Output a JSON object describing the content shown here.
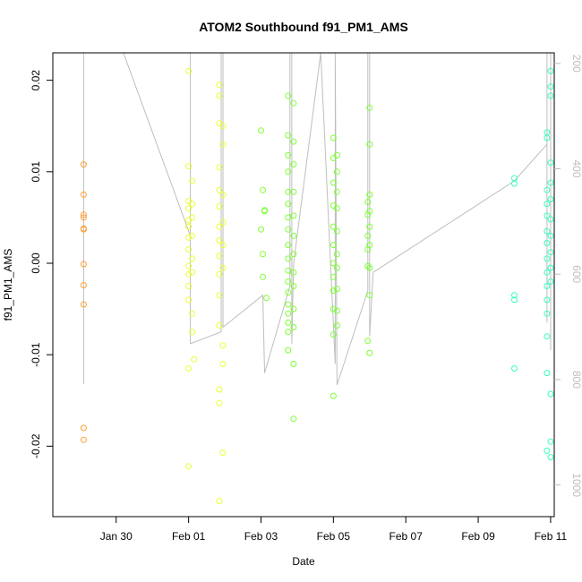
{
  "chart_data": {
    "type": "scatter",
    "title": "ATOM2 Southbound f91_PM1_AMS",
    "xlabel": "Date",
    "ylabel": "f91_PM1_AMS",
    "xlim": [
      -1.75,
      12.1
    ],
    "ylim": [
      -0.0277,
      0.023
    ],
    "x_ticks": [
      {
        "pos": 0,
        "label": "Jan 30"
      },
      {
        "pos": 2,
        "label": "Feb 01"
      },
      {
        "pos": 4,
        "label": "Feb 03"
      },
      {
        "pos": 6,
        "label": "Feb 05"
      },
      {
        "pos": 8,
        "label": "Feb 07"
      },
      {
        "pos": 10,
        "label": "Feb 09"
      },
      {
        "pos": 12,
        "label": "Feb 11"
      }
    ],
    "y_ticks": [
      {
        "value": -0.02,
        "label": "-0.02"
      },
      {
        "value": -0.01,
        "label": "-0.01"
      },
      {
        "value": 0.0,
        "label": "0.00"
      },
      {
        "value": 0.01,
        "label": "0.01"
      },
      {
        "value": 0.02,
        "label": "0.02"
      }
    ],
    "right_axis": {
      "range": [
        180,
        1060
      ],
      "ticks": [
        {
          "value": 200,
          "label": "200"
        },
        {
          "value": 400,
          "label": "400"
        },
        {
          "value": 600,
          "label": "600"
        },
        {
          "value": 800,
          "label": "800"
        },
        {
          "value": 1000,
          "label": "1000"
        }
      ],
      "color": "#bebebe"
    },
    "grid": false,
    "marker": "open-circle",
    "series": [
      {
        "color": "#ff9f33",
        "points": [
          [
            -0.9,
            0.0108
          ],
          [
            -0.9,
            0.0075
          ],
          [
            -0.9,
            0.0053
          ],
          [
            -0.9,
            0.005
          ],
          [
            -0.9,
            0.0038
          ],
          [
            -0.9,
            0.0037
          ],
          [
            -0.9,
            -0.0001
          ],
          [
            -0.9,
            -0.0024
          ],
          [
            -0.9,
            -0.0045
          ],
          [
            -0.9,
            -0.018
          ],
          [
            -0.9,
            -0.0193
          ]
        ]
      },
      {
        "color": "#eaff33",
        "points": [
          [
            2.0,
            0.021
          ],
          [
            2.0,
            0.0106
          ],
          [
            2.0,
            0.0068
          ],
          [
            2.0,
            0.006
          ],
          [
            2.0,
            0.0047
          ],
          [
            2.0,
            0.004
          ],
          [
            2.0,
            0.0028
          ],
          [
            2.0,
            0.0015
          ],
          [
            2.0,
            -0.0003
          ],
          [
            2.0,
            -0.0012
          ],
          [
            2.0,
            -0.0025
          ],
          [
            2.0,
            -0.004
          ],
          [
            2.0,
            -0.0115
          ],
          [
            2.0,
            -0.0222
          ],
          [
            2.1,
            0.009
          ],
          [
            2.1,
            0.0065
          ],
          [
            2.1,
            0.005
          ],
          [
            2.1,
            0.003
          ],
          [
            2.1,
            0.0005
          ],
          [
            2.1,
            -0.001
          ],
          [
            2.1,
            -0.0055
          ],
          [
            2.1,
            -0.0075
          ],
          [
            2.15,
            -0.0105
          ],
          [
            2.85,
            0.0195
          ],
          [
            2.85,
            0.0183
          ],
          [
            2.85,
            0.0153
          ],
          [
            2.85,
            0.0105
          ],
          [
            2.85,
            0.008
          ],
          [
            2.85,
            0.0062
          ],
          [
            2.85,
            0.004
          ],
          [
            2.85,
            0.0025
          ],
          [
            2.85,
            0.0008
          ],
          [
            2.85,
            -0.0012
          ],
          [
            2.85,
            -0.0035
          ],
          [
            2.85,
            -0.0068
          ],
          [
            2.85,
            -0.0138
          ],
          [
            2.85,
            -0.0153
          ],
          [
            2.85,
            -0.026
          ],
          [
            2.95,
            0.015
          ],
          [
            2.95,
            0.013
          ],
          [
            2.95,
            0.0075
          ],
          [
            2.95,
            0.0045
          ],
          [
            2.95,
            0.002
          ],
          [
            2.95,
            -0.0005
          ],
          [
            2.95,
            -0.009
          ],
          [
            2.95,
            -0.011
          ],
          [
            2.95,
            -0.0207
          ]
        ]
      },
      {
        "color": "#7dff33",
        "points": [
          [
            4.0,
            0.0145
          ],
          [
            4.0,
            0.0037
          ],
          [
            4.05,
            0.008
          ],
          [
            4.05,
            0.001
          ],
          [
            4.05,
            -0.0015
          ],
          [
            4.1,
            0.0058
          ],
          [
            4.1,
            0.0057
          ],
          [
            4.15,
            -0.0038
          ],
          [
            4.75,
            0.0183
          ],
          [
            4.75,
            0.014
          ],
          [
            4.75,
            0.0118
          ],
          [
            4.75,
            0.01
          ],
          [
            4.75,
            0.0078
          ],
          [
            4.75,
            0.0065
          ],
          [
            4.75,
            0.005
          ],
          [
            4.75,
            0.0037
          ],
          [
            4.75,
            0.002
          ],
          [
            4.75,
            0.0005
          ],
          [
            4.75,
            -0.0008
          ],
          [
            4.75,
            -0.002
          ],
          [
            4.75,
            -0.0032
          ],
          [
            4.75,
            -0.0045
          ],
          [
            4.75,
            -0.0055
          ],
          [
            4.75,
            -0.0065
          ],
          [
            4.75,
            -0.0075
          ],
          [
            4.75,
            -0.0095
          ],
          [
            4.9,
            0.0175
          ],
          [
            4.9,
            0.0133
          ],
          [
            4.9,
            0.0108
          ],
          [
            4.9,
            0.0078
          ],
          [
            4.9,
            0.0052
          ],
          [
            4.9,
            0.003
          ],
          [
            4.9,
            0.001
          ],
          [
            4.9,
            -0.001
          ],
          [
            4.9,
            -0.0025
          ],
          [
            4.9,
            -0.005
          ],
          [
            4.9,
            -0.007
          ],
          [
            4.9,
            -0.011
          ],
          [
            4.9,
            -0.017
          ],
          [
            6.0,
            0.0137
          ],
          [
            6.0,
            0.0115
          ],
          [
            6.0,
            0.0088
          ],
          [
            6.0,
            0.0063
          ],
          [
            6.0,
            0.004
          ],
          [
            6.0,
            0.002
          ],
          [
            6.0,
            0.0
          ],
          [
            6.0,
            -0.0015
          ],
          [
            6.0,
            -0.003
          ],
          [
            6.0,
            -0.005
          ],
          [
            6.0,
            -0.0078
          ],
          [
            6.0,
            -0.0145
          ],
          [
            6.1,
            0.0118
          ],
          [
            6.1,
            0.01
          ],
          [
            6.1,
            0.0078
          ],
          [
            6.1,
            0.006
          ],
          [
            6.1,
            0.0035
          ],
          [
            6.1,
            0.001
          ],
          [
            6.1,
            -0.0005
          ],
          [
            6.1,
            -0.0028
          ],
          [
            6.1,
            -0.0052
          ],
          [
            6.1,
            -0.0068
          ],
          [
            6.95,
            0.0067
          ],
          [
            6.95,
            0.0053
          ],
          [
            6.95,
            0.003
          ],
          [
            6.95,
            0.0015
          ],
          [
            6.95,
            -0.0003
          ],
          [
            6.95,
            -0.0085
          ],
          [
            7.0,
            0.017
          ],
          [
            7.0,
            0.013
          ],
          [
            7.0,
            0.0075
          ],
          [
            7.0,
            0.0057
          ],
          [
            7.0,
            0.004
          ],
          [
            7.0,
            0.002
          ],
          [
            7.0,
            -0.0005
          ],
          [
            7.0,
            -0.0035
          ],
          [
            7.0,
            -0.0098
          ]
        ]
      },
      {
        "color": "#33ffc0",
        "points": [
          [
            11.0,
            0.0093
          ],
          [
            11.0,
            0.0087
          ],
          [
            11.0,
            -0.0035
          ],
          [
            11.0,
            -0.004
          ],
          [
            11.0,
            -0.0115
          ],
          [
            11.9,
            0.0143
          ],
          [
            11.9,
            0.0137
          ],
          [
            11.9,
            0.008
          ],
          [
            11.9,
            0.0065
          ],
          [
            11.9,
            0.0052
          ],
          [
            11.9,
            0.0035
          ],
          [
            11.9,
            0.0022
          ],
          [
            11.9,
            0.0005
          ],
          [
            11.9,
            -0.001
          ],
          [
            11.9,
            -0.0025
          ],
          [
            11.9,
            -0.004
          ],
          [
            11.9,
            -0.0055
          ],
          [
            11.9,
            -0.008
          ],
          [
            11.9,
            -0.012
          ],
          [
            11.9,
            -0.0205
          ],
          [
            12.0,
            0.021
          ],
          [
            12.0,
            0.0193
          ],
          [
            12.0,
            0.0183
          ],
          [
            12.0,
            0.011
          ],
          [
            12.0,
            0.0088
          ],
          [
            12.0,
            0.007
          ],
          [
            12.0,
            0.0048
          ],
          [
            12.0,
            0.003
          ],
          [
            12.0,
            0.0012
          ],
          [
            12.0,
            -0.0005
          ],
          [
            12.0,
            -0.002
          ],
          [
            12.0,
            -0.0143
          ],
          [
            12.0,
            -0.0195
          ],
          [
            12.0,
            -0.0212
          ]
        ]
      }
    ],
    "track": {
      "color": "#bebebe",
      "points": [
        [
          -0.9,
          -0.0063
        ],
        [
          -0.9,
          -0.0132
        ],
        [
          -0.9,
          0.023
        ],
        [
          0.2,
          0.023
        ],
        [
          2.05,
          0.003
        ],
        [
          2.05,
          0.023
        ],
        [
          2.05,
          -0.0088
        ],
        [
          2.9,
          -0.0075
        ],
        [
          2.9,
          0.023
        ],
        [
          2.95,
          0.023
        ],
        [
          2.95,
          -0.007
        ],
        [
          4.05,
          -0.0035
        ],
        [
          4.1,
          -0.012
        ],
        [
          4.8,
          -0.0025
        ],
        [
          4.8,
          0.023
        ],
        [
          4.85,
          0.023
        ],
        [
          4.85,
          -0.0088
        ],
        [
          4.9,
          0.0
        ],
        [
          5.65,
          0.023
        ],
        [
          6.05,
          -0.011
        ],
        [
          6.05,
          0.023
        ],
        [
          6.1,
          -0.0133
        ],
        [
          6.95,
          -0.003
        ],
        [
          6.95,
          0.023
        ],
        [
          7.0,
          0.023
        ],
        [
          7.0,
          -0.008
        ],
        [
          7.1,
          -0.001
        ],
        [
          11.0,
          0.009
        ],
        [
          11.9,
          0.013
        ],
        [
          11.9,
          -0.0065
        ],
        [
          11.9,
          0.023
        ],
        [
          12.0,
          0.023
        ],
        [
          12.0,
          -0.0095
        ]
      ]
    }
  }
}
